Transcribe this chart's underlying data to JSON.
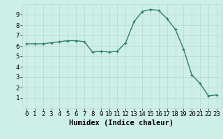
{
  "x": [
    0,
    1,
    2,
    3,
    4,
    5,
    6,
    7,
    8,
    9,
    10,
    11,
    12,
    13,
    14,
    15,
    16,
    17,
    18,
    19,
    20,
    21,
    22,
    23
  ],
  "y": [
    6.2,
    6.2,
    6.2,
    6.3,
    6.4,
    6.5,
    6.5,
    6.4,
    5.4,
    5.5,
    5.4,
    5.5,
    6.3,
    8.3,
    9.3,
    9.5,
    9.4,
    8.6,
    7.6,
    5.7,
    3.2,
    2.4,
    1.2,
    1.3
  ],
  "line_color": "#2d7d6e",
  "marker": "+",
  "marker_size": 3,
  "xlabel": "Humidex (Indice chaleur)",
  "xlim": [
    -0.5,
    23.5
  ],
  "ylim": [
    0,
    10
  ],
  "yticks": [
    1,
    2,
    3,
    4,
    5,
    6,
    7,
    8,
    9
  ],
  "xticks": [
    0,
    1,
    2,
    3,
    4,
    5,
    6,
    7,
    8,
    9,
    10,
    11,
    12,
    13,
    14,
    15,
    16,
    17,
    18,
    19,
    20,
    21,
    22,
    23
  ],
  "bg_color": "#ceeee8",
  "grid_color": "#b8d8d2",
  "tick_fontsize": 6.5,
  "xlabel_fontsize": 7.5
}
